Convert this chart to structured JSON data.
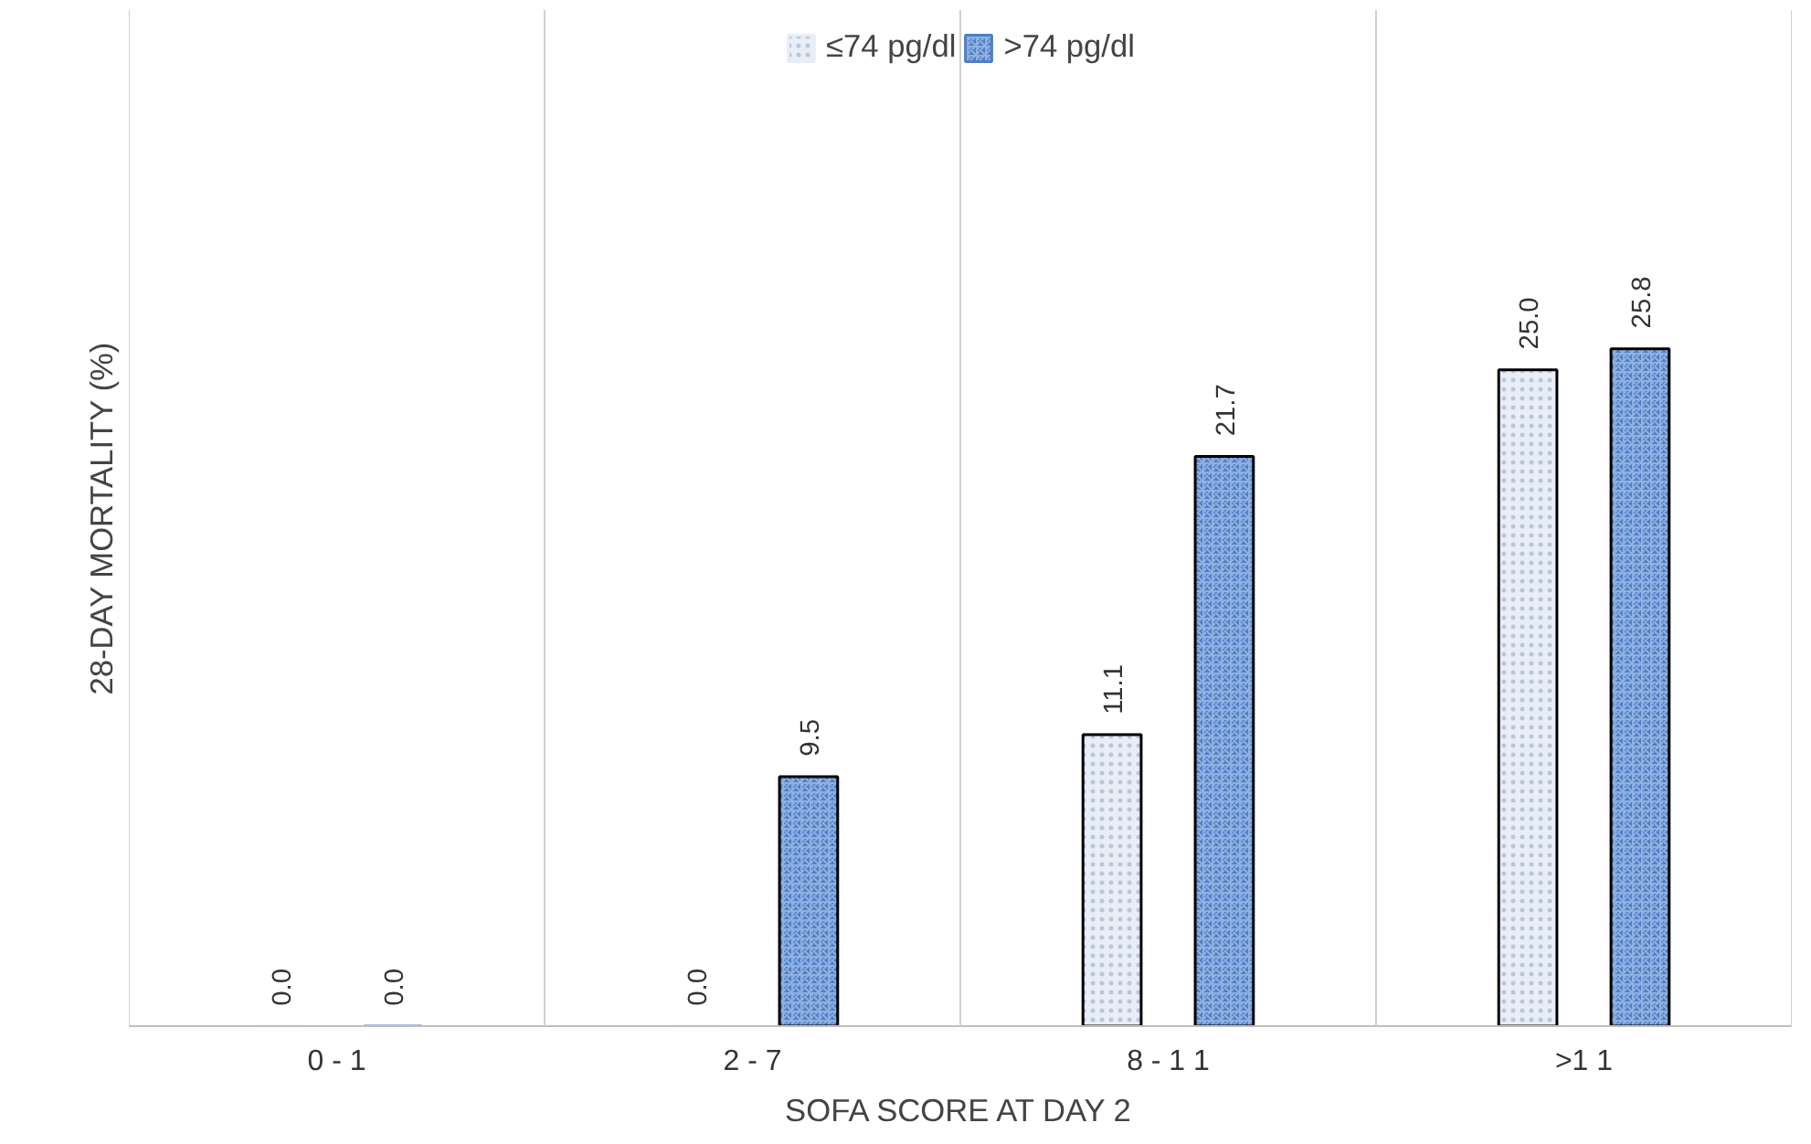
{
  "chart_data": {
    "type": "bar",
    "xlabel": "SOFA SCORE AT DAY 2",
    "ylabel": "28-DAY MORTALITY (%)",
    "categories": [
      "0 - 1",
      "2 - 7",
      "8 - 1 1",
      ">1 1"
    ],
    "series": [
      {
        "name": "≤74 pg/dl",
        "color": "#e9eef6",
        "values": [
          0.0,
          0.0,
          11.1,
          25.0
        ],
        "value_labels": [
          "0.0",
          "0.0",
          "11.1",
          "25.0"
        ]
      },
      {
        "name": ">74 pg/dl",
        "color": "#4f7fc6",
        "values": [
          0.0,
          9.5,
          21.7,
          25.8
        ],
        "value_labels": [
          "0.0",
          "9.5",
          "21.7",
          "25.8"
        ]
      }
    ],
    "legend": "top",
    "grid": "x"
  }
}
